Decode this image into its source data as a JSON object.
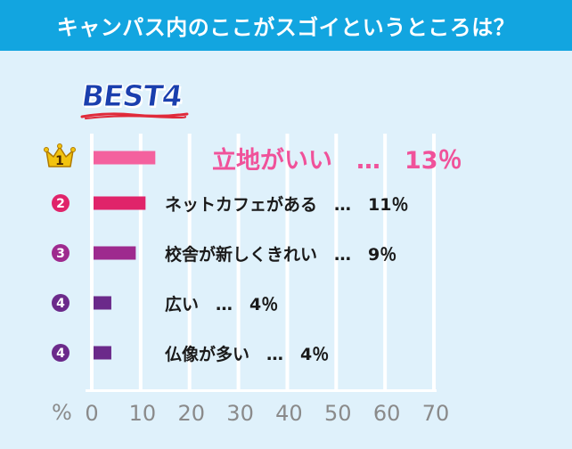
{
  "title": "キャンパス内のここがスゴイというところは？",
  "badge": "BEST4",
  "colors": {
    "header_bg": "#12a5e0",
    "page_bg": "#dff1fb",
    "bar_1": "#f4619e",
    "bar_2": "#e0246a",
    "bar_3": "#9e2a8e",
    "bar_4": "#6b2a8a",
    "top_label": "#f0529a",
    "grid": "#ffffff",
    "badge_text": "#1a3fae",
    "badge_underline": "#e02a3a"
  },
  "chart_data": {
    "type": "bar",
    "orientation": "horizontal",
    "categories": [
      "立地がいい",
      "ネットカフェがある",
      "校舎が新しくきれい",
      "広い",
      "仏像が多い"
    ],
    "values": [
      13,
      11,
      9,
      4,
      4
    ],
    "ranks": [
      "1",
      "2",
      "3",
      "4",
      "4"
    ],
    "row_texts": [
      "立地がいい　…　13％",
      "ネットカフェがある　…　11％",
      "校舎が新しくきれい　…　9％",
      "広い　…　4％",
      "仏像が多い　…　4％"
    ],
    "xlim": [
      0,
      70
    ],
    "xticks": [
      0,
      10,
      20,
      30,
      40,
      50,
      60,
      70
    ],
    "x_unit_label": "%",
    "grid": true
  }
}
